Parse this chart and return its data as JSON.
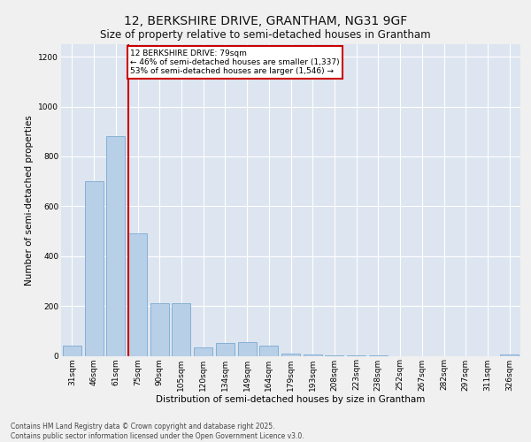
{
  "title_line1": "12, BERKSHIRE DRIVE, GRANTHAM, NG31 9GF",
  "title_line2": "Size of property relative to semi-detached houses in Grantham",
  "xlabel": "Distribution of semi-detached houses by size in Grantham",
  "ylabel": "Number of semi-detached properties",
  "categories": [
    "31sqm",
    "46sqm",
    "61sqm",
    "75sqm",
    "90sqm",
    "105sqm",
    "120sqm",
    "134sqm",
    "149sqm",
    "164sqm",
    "179sqm",
    "193sqm",
    "208sqm",
    "223sqm",
    "238sqm",
    "252sqm",
    "267sqm",
    "282sqm",
    "297sqm",
    "311sqm",
    "326sqm"
  ],
  "values": [
    40,
    700,
    880,
    490,
    210,
    210,
    35,
    50,
    55,
    40,
    10,
    5,
    2,
    1,
    1,
    0,
    0,
    0,
    0,
    0,
    5
  ],
  "bar_color": "#b8cfe8",
  "bar_edge_color": "#7aaad0",
  "annotation_text": "12 BERKSHIRE DRIVE: 79sqm\n← 46% of semi-detached houses are smaller (1,337)\n53% of semi-detached houses are larger (1,546) →",
  "annotation_box_color": "#ffffff",
  "annotation_box_edge": "#cc0000",
  "vline_color": "#cc0000",
  "ylim": [
    0,
    1250
  ],
  "yticks": [
    0,
    200,
    400,
    600,
    800,
    1000,
    1200
  ],
  "background_color": "#dde5f0",
  "grid_color": "#ffffff",
  "footer": "Contains HM Land Registry data © Crown copyright and database right 2025.\nContains public sector information licensed under the Open Government Licence v3.0.",
  "title_fontsize": 10,
  "subtitle_fontsize": 8.5,
  "axis_label_fontsize": 7.5,
  "tick_fontsize": 6.5,
  "footer_fontsize": 5.5
}
